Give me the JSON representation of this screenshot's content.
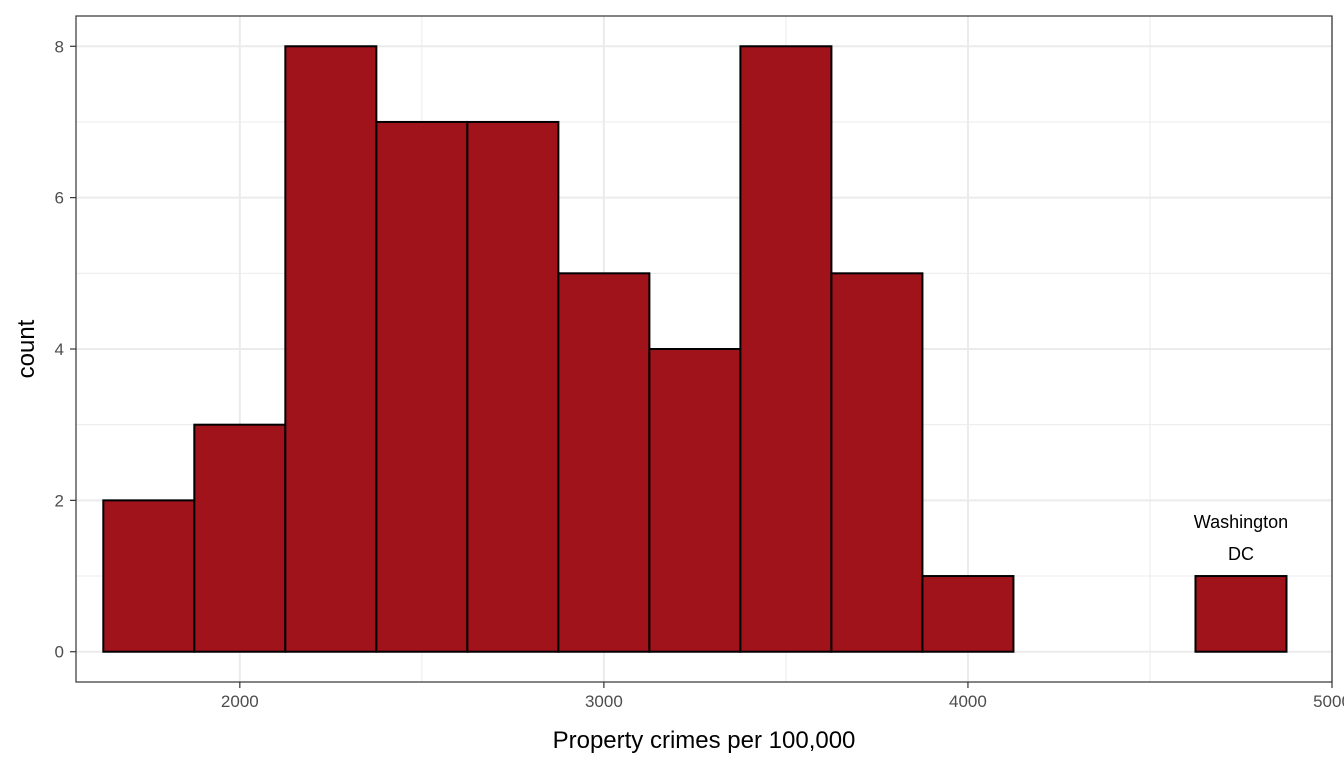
{
  "chart_data": {
    "type": "bar",
    "subtype": "histogram",
    "title": "",
    "xlabel": "Property crimes per 100,000",
    "ylabel": "count",
    "xlim": [
      1550,
      5000
    ],
    "ylim": [
      -0.4,
      8.4
    ],
    "x_ticks": [
      2000,
      3000,
      4000,
      5000
    ],
    "x_tick_labels": [
      "2000",
      "3000",
      "4000",
      "5000"
    ],
    "y_ticks": [
      0,
      2,
      4,
      6,
      8
    ],
    "y_tick_labels": [
      "0",
      "2",
      "4",
      "6",
      "8"
    ],
    "grid": true,
    "bin_width": 250,
    "bins": [
      {
        "x0": 1625,
        "x1": 1875,
        "count": 2
      },
      {
        "x0": 1875,
        "x1": 2125,
        "count": 3
      },
      {
        "x0": 2125,
        "x1": 2375,
        "count": 8
      },
      {
        "x0": 2375,
        "x1": 2625,
        "count": 7
      },
      {
        "x0": 2625,
        "x1": 2875,
        "count": 7
      },
      {
        "x0": 2875,
        "x1": 3125,
        "count": 5
      },
      {
        "x0": 3125,
        "x1": 3375,
        "count": 4
      },
      {
        "x0": 3375,
        "x1": 3625,
        "count": 8
      },
      {
        "x0": 3625,
        "x1": 3875,
        "count": 5
      },
      {
        "x0": 3875,
        "x1": 4125,
        "count": 1
      },
      {
        "x0": 4125,
        "x1": 4375,
        "count": 0
      },
      {
        "x0": 4375,
        "x1": 4625,
        "count": 0
      },
      {
        "x0": 4625,
        "x1": 4875,
        "count": 1
      }
    ],
    "annotation": {
      "lines": [
        "Washington",
        "DC"
      ],
      "x": 4750,
      "y": 1.5
    },
    "colors": {
      "fill": "#A0131A",
      "stroke": "#000000",
      "grid": "#EBEBEB",
      "panel_border": "#333333"
    }
  }
}
